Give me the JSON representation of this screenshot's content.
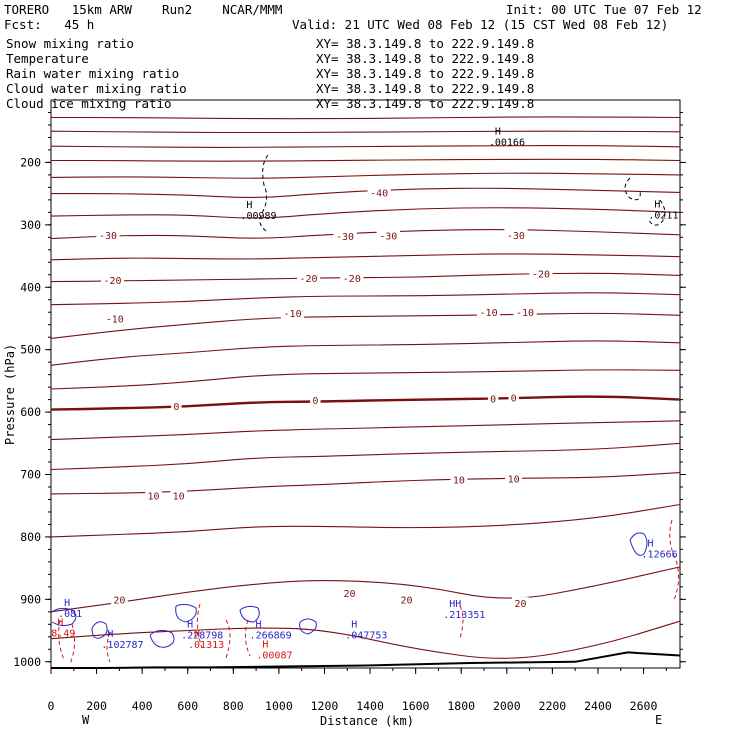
{
  "header": {
    "model": "TORERO   15km ARW    Run2    NCAR/MMM",
    "init": "Init: 00 UTC Tue 07 Feb 12",
    "fcst": "Fcst:   45 h",
    "valid": "Valid: 21 UTC Wed 08 Feb 12 (15 CST Wed 08 Feb 12)"
  },
  "legend": [
    {
      "name": "Snow mixing ratio",
      "xy": "XY=  38.3.149.8 to 222.9.149.8",
      "color": "#000000"
    },
    {
      "name": "Temperature",
      "xy": "XY=  38.3.149.8 to 222.9.149.8",
      "color": "#d01818"
    },
    {
      "name": "Rain water mixing ratio",
      "xy": "XY=  38.3.149.8 to 222.9.149.8",
      "color": "#d01818"
    },
    {
      "name": "Cloud water mixing ratio",
      "xy": "XY=  38.3.149.8 to 222.9.149.8",
      "color": "#2828c8"
    },
    {
      "name": "Cloud ice mixing ratio",
      "xy": "XY=  38.3.149.8 to 222.9.149.8",
      "color": "#000000"
    }
  ],
  "colors": {
    "temperature": "#7a1010",
    "rain": "#d01818",
    "cloud_water": "#2828c8",
    "ice": "#000000",
    "ground": "#000000"
  },
  "chart_data": {
    "type": "line",
    "xlabel": "Distance (km)",
    "ylabel": "Pressure (hPa)",
    "xlim": [
      0,
      2760
    ],
    "ylim": [
      1010,
      100
    ],
    "xticks": [
      "0",
      "200",
      "400",
      "600",
      "800",
      "1000",
      "1200",
      "1400",
      "1600",
      "1800",
      "2000",
      "2200",
      "2400",
      "2600"
    ],
    "yticks": [
      "200",
      "300",
      "400",
      "500",
      "600",
      "700",
      "800",
      "900",
      "1000"
    ],
    "xends": {
      "left": "W",
      "right": "E"
    },
    "isotherms": [
      {
        "p": [
          128,
          128,
          129,
          130,
          130,
          129,
          127,
          127,
          128
        ]
      },
      {
        "p": [
          150,
          151,
          152,
          152,
          152,
          151,
          150,
          150,
          151
        ]
      },
      {
        "p": [
          174,
          175,
          176,
          176,
          175,
          174,
          173,
          173,
          175
        ]
      },
      {
        "p": [
          197,
          197,
          198,
          198,
          197,
          196,
          195,
          195,
          197
        ]
      },
      {
        "p": [
          224,
          223,
          224,
          226,
          223,
          219,
          217,
          218,
          220
        ]
      },
      {
        "p": [
          250,
          250,
          252,
          258,
          249,
          242,
          241,
          245,
          248
        ]
      },
      {
        "p": [
          286,
          284,
          284,
          291,
          282,
          274,
          272,
          275,
          280
        ]
      },
      {
        "p": [
          322,
          317,
          317,
          323,
          316,
          309,
          307,
          311,
          316
        ]
      },
      {
        "p": [
          356,
          353,
          354,
          355,
          352,
          349,
          346,
          348,
          351
        ]
      },
      {
        "p": [
          391,
          390,
          388,
          387,
          385,
          384,
          379,
          377,
          381
        ]
      },
      {
        "p": [
          428,
          426,
          423,
          417,
          414,
          414,
          411,
          408,
          412
        ]
      },
      {
        "p": [
          482,
          469,
          459,
          450,
          447,
          446,
          444,
          441,
          445
        ]
      },
      {
        "p": [
          525,
          512,
          505,
          496,
          493,
          492,
          489,
          485,
          489
        ]
      },
      {
        "p": [
          563,
          559,
          552,
          541,
          538,
          537,
          535,
          532,
          533
        ]
      },
      {
        "p": [
          596,
          594,
          591,
          584,
          583,
          580,
          578,
          574,
          580
        ],
        "bold": true
      },
      {
        "p": [
          644,
          640,
          636,
          630,
          627,
          624,
          620,
          617,
          614
        ]
      },
      {
        "p": [
          692,
          688,
          683,
          673,
          671,
          666,
          663,
          660,
          650
        ]
      },
      {
        "p": [
          731,
          730,
          727,
          720,
          716,
          709,
          706,
          705,
          697
        ]
      },
      {
        "p": [
          800,
          796,
          792,
          783,
          783,
          786,
          782,
          770,
          748
        ]
      },
      {
        "p": [
          920,
          905,
          888,
          875,
          868,
          876,
          905,
          878,
          848
        ]
      },
      {
        "p": [
          963,
          955,
          950,
          945,
          948,
          980,
          1000,
          975,
          935
        ]
      }
    ],
    "isotherm_x": [
      0,
      300,
      600,
      900,
      1200,
      1600,
      2000,
      2400,
      2760
    ],
    "temperature_labels": [
      {
        "x": 1440,
        "p": 248,
        "text": "-40"
      },
      {
        "x": 250,
        "p": 316,
        "text": "-30"
      },
      {
        "x": 1290,
        "p": 318,
        "text": "-30"
      },
      {
        "x": 1480,
        "p": 317,
        "text": "-30"
      },
      {
        "x": 2040,
        "p": 316,
        "text": "-30"
      },
      {
        "x": 270,
        "p": 388,
        "text": "-20"
      },
      {
        "x": 1130,
        "p": 385,
        "text": "-20"
      },
      {
        "x": 1320,
        "p": 385,
        "text": "-20"
      },
      {
        "x": 2150,
        "p": 378,
        "text": "-20"
      },
      {
        "x": 280,
        "p": 450,
        "text": "-10"
      },
      {
        "x": 1060,
        "p": 441,
        "text": "-10"
      },
      {
        "x": 1920,
        "p": 440,
        "text": "-10"
      },
      {
        "x": 2080,
        "p": 440,
        "text": "-10"
      },
      {
        "x": 550,
        "p": 590,
        "text": "0"
      },
      {
        "x": 1160,
        "p": 581,
        "text": "0"
      },
      {
        "x": 1940,
        "p": 578,
        "text": "0"
      },
      {
        "x": 2030,
        "p": 577,
        "text": "0"
      },
      {
        "x": 1790,
        "p": 708,
        "text": "10"
      },
      {
        "x": 2030,
        "p": 706,
        "text": "10"
      },
      {
        "x": 450,
        "p": 734,
        "text": "10"
      },
      {
        "x": 560,
        "p": 734,
        "text": "10"
      },
      {
        "x": 1310,
        "p": 890,
        "text": "20"
      },
      {
        "x": 1560,
        "p": 900,
        "text": "20"
      },
      {
        "x": 300,
        "p": 900,
        "text": "20"
      },
      {
        "x": 2060,
        "p": 906,
        "text": "20"
      }
    ],
    "maxima": [
      {
        "x": 1930,
        "p": 155,
        "h": "H",
        "text": ".00166",
        "color": "#000000"
      },
      {
        "x": 840,
        "p": 273,
        "h": "H",
        "text": ".00989",
        "color": "#000000"
      },
      {
        "x": 2630,
        "p": 272,
        "h": "H",
        "text": ".0211",
        "color": "#000000"
      },
      {
        "x": 2600,
        "p": 815,
        "h": "H",
        "text": ".12666",
        "color": "#2828c8"
      },
      {
        "x": 40,
        "p": 911,
        "h": "H",
        "text": ".081",
        "color": "#2828c8"
      },
      {
        "x": 1730,
        "p": 912,
        "h": "HH",
        "text": ".213351",
        "color": "#2828c8"
      },
      {
        "x": 580,
        "p": 945,
        "h": "H",
        "text": ".228798",
        "color": "#2828c8"
      },
      {
        "x": 880,
        "p": 945,
        "h": "H",
        "text": ".266869",
        "color": "#2828c8"
      },
      {
        "x": 1300,
        "p": 945,
        "h": "H",
        "text": ".047753",
        "color": "#2828c8"
      },
      {
        "x": 230,
        "p": 960,
        "h": "H",
        "text": ".102787",
        "color": "#2828c8"
      },
      {
        "x": 610,
        "p": 960,
        "h": "H",
        "text": ".01313",
        "color": "#d01818"
      },
      {
        "x": 910,
        "p": 977,
        "h": "H",
        "text": ".00087",
        "color": "#d01818"
      },
      {
        "x": 10,
        "p": 942,
        "h": "H",
        "text": "8.49",
        "color": "#d01818"
      }
    ],
    "ground_p": [
      1010,
      1010,
      1009,
      1009,
      1008,
      1007,
      1006,
      1004,
      1002,
      1001,
      1000,
      985,
      990
    ]
  }
}
